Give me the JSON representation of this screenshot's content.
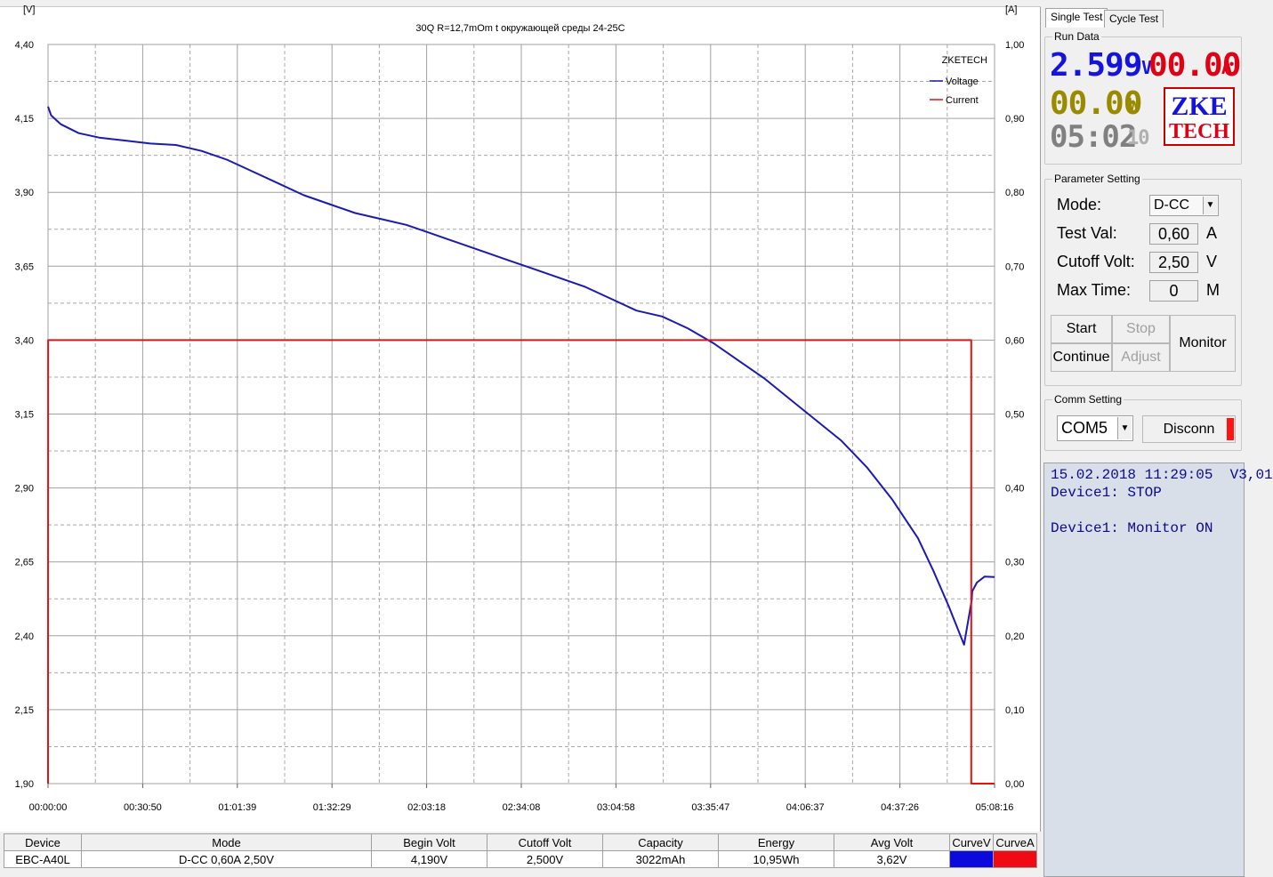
{
  "chart": {
    "title": "30Q R=12,7mOm  t окружающей среды 24-25С",
    "watermark": "ZKETECH",
    "left_axis_unit_partial": "[V]",
    "right_axis_unit_partial": "[A]",
    "legend": [
      {
        "name": "Voltage",
        "color": "#1a1ab4"
      },
      {
        "name": "Current",
        "color": "#e01414"
      }
    ]
  },
  "chart_data": {
    "type": "line",
    "title": "30Q R=12,7mOm  t окружающей среды 24-25С",
    "xlabel": "",
    "ylabel": "",
    "x_ticks": [
      "00:00:00",
      "00:30:50",
      "01:01:39",
      "01:32:29",
      "02:03:18",
      "02:34:08",
      "03:04:58",
      "03:35:47",
      "04:06:37",
      "04:37:26",
      "05:08:16"
    ],
    "y_left_ticks": [
      "4,40",
      "4,15",
      "3,90",
      "3,65",
      "3,40",
      "3,15",
      "2,90",
      "2,65",
      "2,40",
      "2,15",
      "1,90"
    ],
    "y_right_ticks": [
      "1,00",
      "0,90",
      "0,80",
      "0,70",
      "0,60",
      "0,50",
      "0,40",
      "0,30",
      "0,20",
      "0,10",
      "0,00"
    ],
    "ylim_left": [
      1.9,
      4.4
    ],
    "ylim_right": [
      0.0,
      1.0
    ],
    "xlim_seconds": [
      0,
      18496
    ],
    "grid": true,
    "legend_position": "top-right",
    "series": [
      {
        "name": "Voltage",
        "axis": "left",
        "color": "#1a1ab4",
        "x_seconds": [
          0,
          60,
          250,
          600,
          1000,
          1500,
          2000,
          2500,
          3000,
          3500,
          4000,
          4500,
          5000,
          5500,
          6000,
          6500,
          7000,
          7500,
          8000,
          8500,
          9000,
          9500,
          10000,
          10500,
          11000,
          11500,
          12000,
          12500,
          13000,
          13500,
          14000,
          14500,
          15000,
          15500,
          16000,
          16500,
          17000,
          17300,
          17600,
          17900,
          18050,
          18060,
          18150,
          18300,
          18496
        ],
        "values": [
          4.19,
          4.16,
          4.13,
          4.1,
          4.085,
          4.075,
          4.065,
          4.06,
          4.04,
          4.01,
          3.97,
          3.93,
          3.89,
          3.86,
          3.83,
          3.81,
          3.79,
          3.76,
          3.73,
          3.7,
          3.67,
          3.64,
          3.61,
          3.58,
          3.54,
          3.5,
          3.48,
          3.44,
          3.39,
          3.33,
          3.27,
          3.2,
          3.13,
          3.06,
          2.97,
          2.86,
          2.73,
          2.62,
          2.5,
          2.37,
          2.52,
          2.55,
          2.58,
          2.6,
          2.599
        ]
      },
      {
        "name": "Current",
        "axis": "right",
        "color": "#e01414",
        "x_seconds": [
          0,
          1,
          18040,
          18041,
          18496
        ],
        "values": [
          0.0,
          0.6,
          0.6,
          0.0,
          0.0
        ]
      }
    ]
  },
  "summary_table": {
    "headers": [
      "Device",
      "Mode",
      "Begin Volt",
      "Cutoff Volt",
      "Capacity",
      "Energy",
      "Avg Volt",
      "CurveV",
      "CurveA"
    ],
    "row": [
      "EBC-A40L",
      "D-CC  0,60A  2,50V",
      "4,190V",
      "2,500V",
      "3022mAh",
      "10,95Wh",
      "3,62V"
    ],
    "curve_colors": {
      "voltage": "#0a0adc",
      "current": "#f00a14"
    }
  },
  "tabs": [
    "Single Test",
    "Cycle Test"
  ],
  "run_data": {
    "title": "Run Data",
    "voltage": "2.599",
    "voltage_unit": "V",
    "current": "00.00",
    "current_unit": "A",
    "power": "00.00",
    "power_unit": "W",
    "time": "05:02",
    "time_seconds": "10",
    "logo_top": "ZKE",
    "logo_bottom": "TECH"
  },
  "parameter_setting": {
    "title": "Parameter Setting",
    "mode_label": "Mode:",
    "mode_value": "D-CC",
    "test_val_label": "Test Val:",
    "test_val_value": "0,60",
    "test_val_unit": "A",
    "cutoff_label": "Cutoff Volt:",
    "cutoff_value": "2,50",
    "cutoff_unit": "V",
    "max_time_label": "Max Time:",
    "max_time_value": "0",
    "max_time_unit": "M",
    "buttons": {
      "start": "Start",
      "stop": "Stop",
      "continue": "Continue",
      "adjust": "Adjust",
      "monitor": "Monitor"
    }
  },
  "comm_setting": {
    "title": "Comm Setting",
    "port": "COM5",
    "disconnect": "Disconn"
  },
  "log": {
    "line1": "15.02.2018 11:29:05  V3,01",
    "line2": "Device1: STOP",
    "line3": "",
    "line4": "Device1: Monitor ON"
  }
}
